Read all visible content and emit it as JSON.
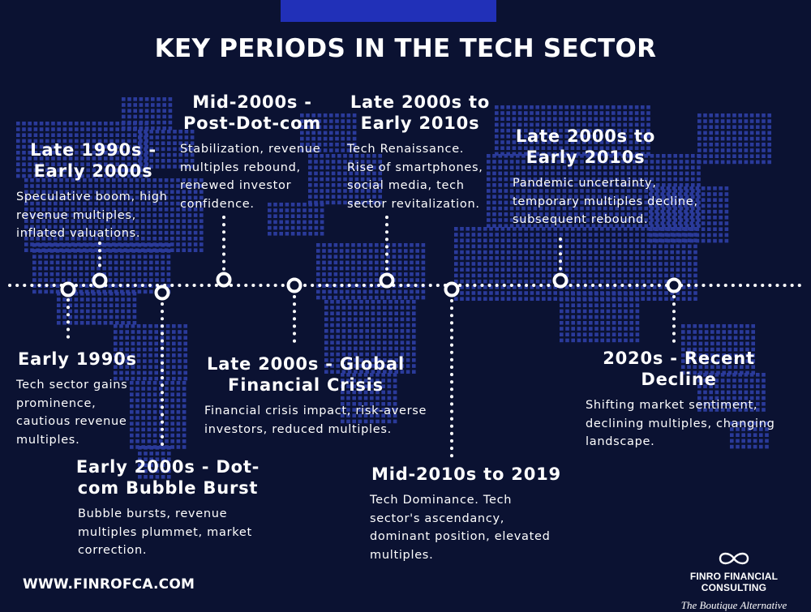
{
  "page": {
    "title": "KEY PERIODS IN THE TECH SECTOR",
    "website": "WWW.FINROFCA.COM"
  },
  "brand": {
    "name": "FINRO FINANCIAL CONSULTING",
    "tagline": "The Boutique Alternative",
    "logo_icon": "infinity-icon"
  },
  "colors": {
    "background": "#0b1232",
    "accent_bar": "#2130b8",
    "map_dots": "#2a3a9a",
    "text": "#ffffff"
  },
  "events": [
    {
      "id": "early-1990s",
      "title": "Early 1990s",
      "lines": [
        "Tech sector gains",
        "prominence,",
        "cautious revenue",
        "multiples."
      ]
    },
    {
      "id": "late-1990s",
      "title": "Late 1990s - Early 2000s",
      "title_lines": [
        "Late 1990s -",
        "Early 2000s"
      ],
      "lines": [
        "Speculative boom, high",
        "revenue multiples,",
        "inflated valuations."
      ]
    },
    {
      "id": "early-2000s",
      "title": "Early 2000s - Dot-com Bubble Burst",
      "title_lines": [
        "Early 2000s - Dot-",
        "com Bubble Burst"
      ],
      "lines": [
        "Bubble bursts, revenue",
        "multiples plummet, market",
        "correction."
      ]
    },
    {
      "id": "mid-2000s",
      "title": "Mid-2000s - Post-Dot-com",
      "title_lines": [
        "Mid-2000s -",
        "Post-Dot-com"
      ],
      "lines": [
        "Stabilization, revenue",
        "multiples rebound,",
        "renewed investor",
        "confidence."
      ]
    },
    {
      "id": "late-2000s-gfc",
      "title": "Late 2000s - Global Financial Crisis",
      "title_lines": [
        "Late 2000s - Global",
        "Financial Crisis"
      ],
      "lines": [
        "Financial crisis impact, risk-averse",
        "investors, reduced multiples."
      ]
    },
    {
      "id": "late-2000s-renaissance",
      "title": "Late 2000s to Early 2010s",
      "title_lines": [
        "Late 2000s to",
        "Early 2010s"
      ],
      "lines": [
        "Tech Renaissance.",
        "Rise of smartphones,",
        "social media, tech",
        "sector revitalization."
      ]
    },
    {
      "id": "mid-2010s",
      "title": "Mid-2010s to 2019",
      "lines": [
        "Tech Dominance. Tech",
        "sector's ascendancy,",
        "dominant position, elevated",
        "multiples."
      ]
    },
    {
      "id": "late-2000s-pandemic",
      "title": "Late 2000s to Early 2010s",
      "title_lines": [
        "Late 2000s to",
        "Early 2010s"
      ],
      "lines": [
        "Pandemic uncertainty,",
        "temporary multiples decline,",
        "subsequent rebound."
      ]
    },
    {
      "id": "2020s",
      "title": "2020s - Recent Decline",
      "title_lines": [
        "2020s - Recent",
        "Decline"
      ],
      "lines": [
        "Shifting market sentiment,",
        "declining multiples, changing",
        "landscape."
      ]
    }
  ]
}
